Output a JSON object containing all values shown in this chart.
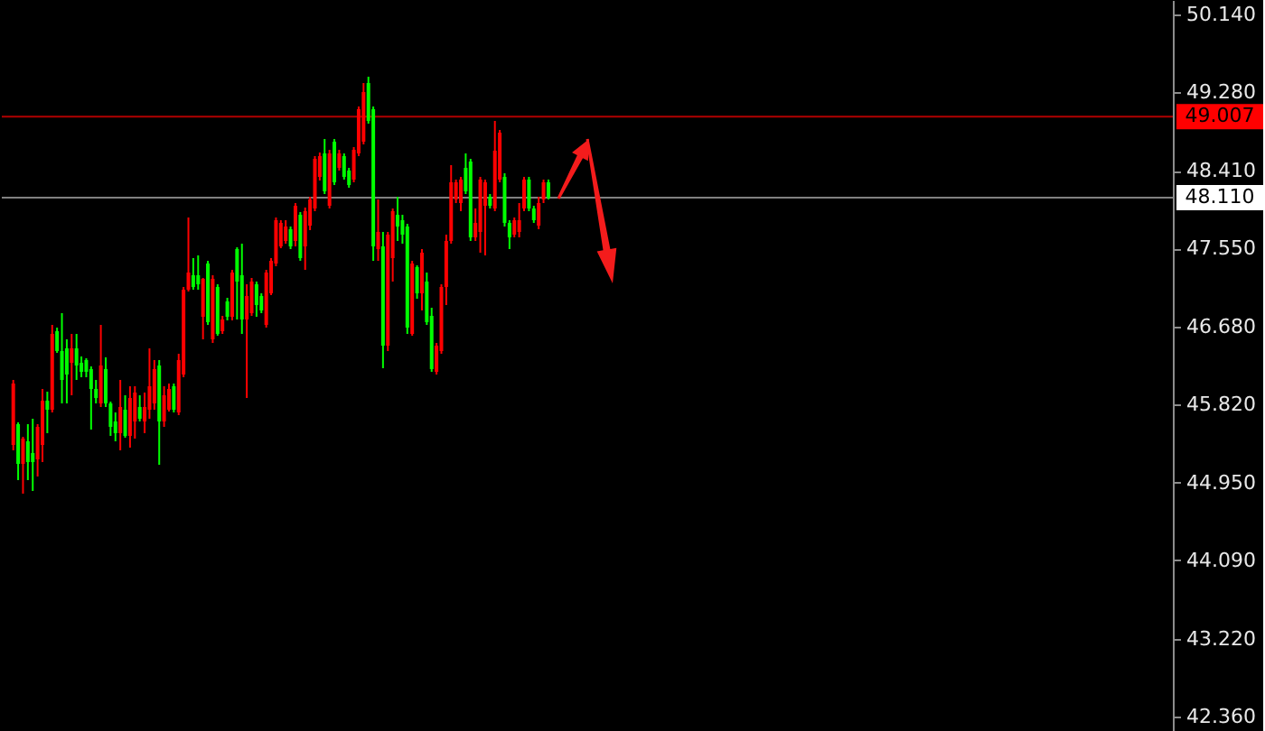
{
  "chart_data": {
    "type": "candlestick",
    "categories": [
      null,
      null,
      null,
      null,
      null,
      null,
      null,
      null,
      null,
      null,
      null,
      null,
      null,
      null,
      null,
      null,
      null,
      null,
      null,
      null,
      null,
      null,
      null,
      null,
      null,
      null,
      null,
      null,
      null,
      null,
      null,
      null,
      null,
      null,
      null,
      null,
      null,
      null,
      null,
      null,
      null,
      null,
      null,
      null,
      null,
      null,
      null,
      null,
      null,
      null,
      null,
      null,
      null,
      null,
      null,
      null,
      null,
      null,
      null,
      null,
      null,
      null,
      null,
      null,
      null,
      null,
      null,
      null,
      null,
      null,
      null,
      null,
      null,
      null,
      null,
      null,
      null,
      null,
      null,
      null,
      null,
      null,
      null,
      null,
      null,
      null,
      null,
      null,
      null,
      null,
      null,
      null,
      null,
      null,
      null,
      null,
      null,
      null,
      null,
      null,
      null,
      null,
      null,
      null,
      null,
      null,
      null,
      null,
      null,
      null,
      null,
      null,
      null,
      null,
      null,
      null,
      null,
      null,
      null,
      null,
      null,
      null,
      null,
      null,
      null,
      null,
      null,
      null,
      null,
      null,
      null,
      null,
      null,
      null,
      null,
      null,
      null,
      null,
      null,
      null,
      null,
      null,
      null,
      null,
      null,
      null,
      null,
      null,
      null,
      null,
      null,
      null,
      null,
      null,
      null,
      null,
      null,
      null,
      null,
      null,
      null,
      null,
      null,
      null,
      null,
      null,
      null,
      null,
      null,
      null,
      null,
      null,
      null,
      null,
      null,
      null,
      null,
      null,
      null,
      null,
      null,
      null,
      null,
      null,
      null,
      null,
      null,
      null,
      null,
      null,
      null,
      null,
      null,
      null,
      null,
      null,
      null,
      null,
      null,
      null,
      null,
      null,
      null,
      null,
      null,
      null,
      null,
      null,
      null,
      null,
      null,
      null,
      null,
      null,
      null,
      null,
      null,
      null,
      null,
      null,
      null,
      null,
      null,
      null,
      null,
      null,
      null,
      null,
      null,
      null,
      null,
      null,
      null,
      null,
      null,
      null,
      null
    ],
    "ohlc": [
      [
        45.37,
        46.09,
        45.31,
        46.05
      ],
      [
        45.6,
        45.62,
        44.98,
        45.16
      ],
      [
        45.16,
        45.46,
        44.83,
        45.44
      ],
      [
        45.41,
        45.6,
        44.98,
        45.18
      ],
      [
        45.28,
        45.66,
        44.86,
        45.18
      ],
      [
        45.21,
        45.6,
        45.02,
        45.57
      ],
      [
        45.37,
        45.99,
        45.18,
        45.86
      ],
      [
        45.86,
        45.96,
        45.5,
        45.76
      ],
      [
        45.76,
        46.7,
        45.73,
        46.6
      ],
      [
        46.63,
        46.67,
        46.39,
        46.41
      ],
      [
        46.41,
        46.83,
        45.83,
        46.09
      ],
      [
        46.44,
        46.54,
        45.83,
        46.15
      ],
      [
        46.28,
        46.6,
        45.92,
        46.44
      ],
      [
        46.44,
        46.6,
        46.09,
        46.25
      ],
      [
        46.28,
        46.35,
        46.12,
        46.18
      ],
      [
        46.31,
        46.33,
        46.12,
        46.18
      ],
      [
        46.21,
        46.24,
        45.54,
        45.99
      ],
      [
        45.99,
        46.09,
        45.83,
        45.89
      ],
      [
        45.83,
        46.7,
        45.79,
        46.25
      ],
      [
        46.21,
        46.34,
        45.79,
        45.83
      ],
      [
        45.83,
        45.85,
        45.47,
        45.57
      ],
      [
        45.63,
        45.73,
        45.41,
        45.5
      ],
      [
        45.5,
        46.09,
        45.31,
        45.79
      ],
      [
        45.76,
        45.92,
        45.45,
        45.47
      ],
      [
        45.47,
        46.02,
        45.34,
        45.89
      ],
      [
        45.63,
        46.02,
        45.44,
        45.95
      ],
      [
        45.79,
        45.92,
        45.63,
        45.66
      ],
      [
        45.63,
        45.95,
        45.5,
        45.79
      ],
      [
        45.76,
        46.44,
        45.66,
        46.02
      ],
      [
        45.83,
        46.31,
        45.76,
        46.21
      ],
      [
        46.25,
        46.31,
        45.15,
        45.63
      ],
      [
        45.63,
        46.02,
        45.57,
        45.92
      ],
      [
        45.76,
        46.05,
        45.74,
        45.99
      ],
      [
        46.02,
        46.05,
        45.73,
        45.76
      ],
      [
        45.73,
        46.38,
        45.7,
        46.31
      ],
      [
        46.15,
        47.12,
        46.12,
        47.09
      ],
      [
        47.09,
        47.89,
        47.07,
        47.28
      ],
      [
        47.25,
        47.44,
        47.09,
        47.12
      ],
      [
        47.25,
        47.47,
        47.09,
        47.15
      ],
      [
        46.79,
        47.22,
        46.54,
        47.21
      ],
      [
        47.38,
        47.41,
        46.7,
        46.73
      ],
      [
        46.54,
        47.25,
        46.5,
        47.21
      ],
      [
        47.12,
        47.15,
        46.58,
        46.6
      ],
      [
        46.63,
        46.8,
        46.6,
        46.76
      ],
      [
        46.96,
        47.0,
        46.75,
        46.79
      ],
      [
        46.79,
        47.31,
        46.75,
        47.28
      ],
      [
        47.54,
        47.56,
        46.76,
        47.18
      ],
      [
        47.25,
        47.6,
        46.6,
        46.76
      ],
      [
        46.76,
        47.15,
        45.89,
        47.02
      ],
      [
        46.83,
        47.22,
        46.8,
        47.18
      ],
      [
        47.15,
        47.18,
        46.79,
        46.92
      ],
      [
        47.02,
        47.05,
        46.83,
        46.86
      ],
      [
        46.7,
        47.31,
        46.67,
        47.28
      ],
      [
        47.05,
        47.44,
        47.03,
        47.41
      ],
      [
        47.38,
        47.89,
        47.35,
        47.86
      ],
      [
        47.57,
        47.86,
        47.55,
        47.83
      ],
      [
        47.63,
        47.86,
        47.6,
        47.79
      ],
      [
        47.76,
        47.79,
        47.54,
        47.57
      ],
      [
        47.63,
        48.05,
        47.57,
        48.02
      ],
      [
        47.92,
        47.95,
        47.41,
        47.44
      ],
      [
        47.57,
        48.0,
        47.31,
        47.96
      ],
      [
        47.8,
        48.12,
        47.75,
        48.09
      ],
      [
        47.99,
        48.57,
        47.96,
        48.54
      ],
      [
        48.34,
        48.61,
        48.3,
        48.57
      ],
      [
        48.6,
        48.76,
        48.15,
        48.18
      ],
      [
        48.02,
        48.64,
        47.99,
        48.6
      ],
      [
        48.73,
        48.76,
        48.25,
        48.28
      ],
      [
        48.44,
        48.64,
        48.41,
        48.6
      ],
      [
        48.57,
        48.6,
        48.31,
        48.34
      ],
      [
        48.41,
        48.44,
        48.22,
        48.25
      ],
      [
        48.31,
        48.67,
        48.28,
        48.64
      ],
      [
        48.6,
        49.12,
        48.57,
        49.09
      ],
      [
        48.73,
        49.38,
        48.7,
        49.28
      ],
      [
        49.38,
        49.45,
        48.93,
        48.96
      ],
      [
        49.09,
        49.12,
        47.41,
        47.57
      ],
      [
        47.54,
        48.09,
        47.41,
        47.73
      ],
      [
        47.57,
        47.73,
        46.22,
        46.47
      ],
      [
        46.47,
        47.73,
        46.41,
        47.7
      ],
      [
        47.44,
        47.99,
        47.18,
        47.96
      ],
      [
        47.92,
        48.12,
        47.63,
        47.79
      ],
      [
        47.86,
        47.92,
        47.6,
        47.7
      ],
      [
        47.79,
        47.82,
        46.6,
        46.67
      ],
      [
        46.6,
        47.41,
        46.58,
        47.38
      ],
      [
        47.34,
        47.36,
        46.99,
        47.05
      ],
      [
        47.05,
        47.54,
        46.86,
        47.5
      ],
      [
        47.18,
        47.28,
        46.7,
        46.73
      ],
      [
        46.8,
        46.89,
        46.18,
        46.21
      ],
      [
        46.18,
        46.5,
        46.15,
        46.47
      ],
      [
        46.41,
        47.15,
        46.38,
        47.12
      ],
      [
        47.12,
        47.7,
        46.92,
        47.63
      ],
      [
        47.63,
        48.47,
        47.6,
        48.28
      ],
      [
        48.09,
        48.31,
        48.05,
        48.28
      ],
      [
        48.05,
        48.34,
        47.96,
        48.31
      ],
      [
        48.44,
        48.6,
        48.15,
        48.18
      ],
      [
        48.51,
        48.54,
        47.63,
        47.67
      ],
      [
        47.67,
        47.99,
        47.63,
        47.83
      ],
      [
        47.73,
        48.34,
        47.5,
        48.31
      ],
      [
        48.02,
        48.31,
        47.47,
        48.28
      ],
      [
        48.12,
        48.15,
        47.99,
        48.02
      ],
      [
        47.99,
        48.96,
        47.96,
        48.63
      ],
      [
        48.31,
        48.86,
        48.28,
        48.83
      ],
      [
        48.34,
        48.38,
        47.79,
        47.83
      ],
      [
        47.83,
        47.86,
        47.54,
        47.67
      ],
      [
        47.7,
        47.89,
        47.67,
        47.86
      ],
      [
        47.73,
        48.05,
        47.67,
        47.86
      ],
      [
        47.99,
        48.34,
        47.96,
        48.31
      ],
      [
        48.31,
        48.34,
        47.96,
        47.99
      ],
      [
        47.99,
        48.02,
        47.83,
        47.86
      ],
      [
        47.8,
        48.12,
        47.76,
        48.05
      ],
      [
        48.09,
        48.31,
        48.05,
        48.28
      ],
      [
        48.28,
        48.31,
        48.09,
        48.11
      ],
      null,
      null,
      null,
      null,
      null,
      null,
      null,
      null,
      null,
      null,
      null,
      null,
      null,
      null,
      null,
      null,
      null,
      null,
      null,
      null,
      null,
      null,
      null,
      null,
      null,
      null,
      null,
      null,
      null,
      null,
      null,
      null,
      null,
      null,
      null,
      null,
      null,
      null,
      null,
      null,
      null,
      null,
      null,
      null,
      null,
      null,
      null,
      null,
      null,
      null,
      null,
      null,
      null,
      null,
      null,
      null,
      null,
      null,
      null,
      null,
      null,
      null,
      null,
      null,
      null,
      null,
      null,
      null,
      null,
      null,
      null,
      null,
      null,
      null,
      null,
      null,
      null,
      null,
      null,
      null,
      null,
      null,
      null,
      null,
      null,
      null,
      null,
      null,
      null,
      null,
      null,
      null,
      null,
      null,
      null,
      null,
      null,
      null,
      null,
      null,
      null,
      null,
      null,
      null,
      null,
      null,
      null,
      null,
      null,
      null,
      null,
      null,
      null,
      null,
      null,
      null,
      null,
      null,
      null,
      null,
      null,
      null,
      null,
      null,
      null,
      null
    ],
    "colors": [
      "#ff0000",
      "#00ff00",
      "#ff0000",
      "#00ff00",
      "#00ff00",
      "#ff0000",
      "#ff0000",
      "#00ff00",
      "#ff0000",
      "#00ff00",
      "#00ff00",
      "#00ff00",
      "#ff0000",
      "#00ff00",
      "#00ff00",
      "#00ff00",
      "#00ff00",
      "#00ff00",
      "#ff0000",
      "#00ff00",
      "#00ff00",
      "#00ff00",
      "#ff0000",
      "#00ff00",
      "#ff0000",
      "#ff0000",
      "#00ff00",
      "#ff0000",
      "#ff0000",
      "#ff0000",
      "#00ff00",
      "#ff0000",
      "#ff0000",
      "#00ff00",
      "#ff0000",
      "#ff0000",
      "#ff0000",
      "#00ff00",
      "#00ff00",
      "#ff0000",
      "#00ff00",
      "#ff0000",
      "#00ff00",
      "#ff0000",
      "#00ff00",
      "#ff0000",
      "#00ff00",
      "#00ff00",
      "#ff0000",
      "#ff0000",
      "#00ff00",
      "#00ff00",
      "#ff0000",
      "#ff0000",
      "#ff0000",
      "#ff0000",
      "#ff0000",
      "#00ff00",
      "#ff0000",
      "#00ff00",
      "#ff0000",
      "#ff0000",
      "#ff0000",
      "#ff0000",
      "#00ff00",
      "#ff0000",
      "#00ff00",
      "#ff0000",
      "#00ff00",
      "#00ff00",
      "#ff0000",
      "#ff0000",
      "#ff0000",
      "#00ff00",
      "#00ff00",
      "#ff0000",
      "#00ff00",
      "#ff0000",
      "#ff0000",
      "#00ff00",
      "#00ff00",
      "#00ff00",
      "#ff0000",
      "#00ff00",
      "#ff0000",
      "#00ff00",
      "#00ff00",
      "#ff0000",
      "#ff0000",
      "#ff0000",
      "#ff0000",
      "#ff0000",
      "#ff0000",
      "#00ff00",
      "#00ff00",
      "#ff0000",
      "#ff0000",
      "#ff0000",
      "#00ff00",
      "#ff0000",
      "#ff0000",
      "#00ff00",
      "#00ff00",
      "#ff0000",
      "#ff0000",
      "#ff0000",
      "#00ff00",
      "#00ff00",
      "#ff0000",
      "#ff0000",
      "#00ff00",
      null,
      null,
      null,
      null,
      null,
      null,
      null,
      null,
      null,
      null,
      null,
      null,
      null,
      null,
      null,
      null,
      null,
      null,
      null,
      null,
      null,
      null,
      null,
      null,
      null,
      null,
      null,
      null,
      null,
      null,
      null,
      null,
      null,
      null,
      null,
      null,
      null,
      null,
      null,
      null,
      null,
      null,
      null,
      null,
      null,
      null,
      null,
      null,
      null,
      null,
      null,
      null,
      null,
      null,
      null,
      null,
      null,
      null,
      null,
      null,
      null,
      null,
      null,
      null,
      null,
      null,
      null,
      null,
      null,
      null,
      null,
      null,
      null,
      null,
      null,
      null,
      null,
      null,
      null,
      null,
      null,
      null,
      null,
      null,
      null,
      null,
      null,
      null,
      null,
      null,
      null,
      null,
      null,
      null,
      null,
      null,
      null,
      null,
      null,
      null,
      null,
      null,
      null,
      null,
      null,
      null,
      null,
      null,
      null,
      null,
      null,
      null,
      null,
      null,
      null,
      null,
      null,
      null,
      null,
      null,
      null,
      null,
      null,
      null,
      null,
      null
    ],
    "ylim": [
      42.2,
      50.3
    ],
    "yticks": [
      {
        "value": 50.14,
        "label": "50.140"
      },
      {
        "value": 49.28,
        "label": "49.280"
      },
      {
        "value": 48.41,
        "label": "48.410"
      },
      {
        "value": 47.55,
        "label": "47.550"
      },
      {
        "value": 46.68,
        "label": "46.680"
      },
      {
        "value": 45.82,
        "label": "45.820"
      },
      {
        "value": 44.95,
        "label": "44.950"
      },
      {
        "value": 44.09,
        "label": "44.090"
      },
      {
        "value": 43.22,
        "label": "43.220"
      },
      {
        "value": 42.36,
        "label": "42.360"
      }
    ],
    "ref_lines": [
      {
        "axis": "y",
        "value": 49.007,
        "label": "49.007",
        "color": "#b00000"
      },
      {
        "axis": "y",
        "value": 48.11,
        "label": "48.110",
        "color": "#808080"
      }
    ],
    "grid": false,
    "tick_labels": "y"
  }
}
